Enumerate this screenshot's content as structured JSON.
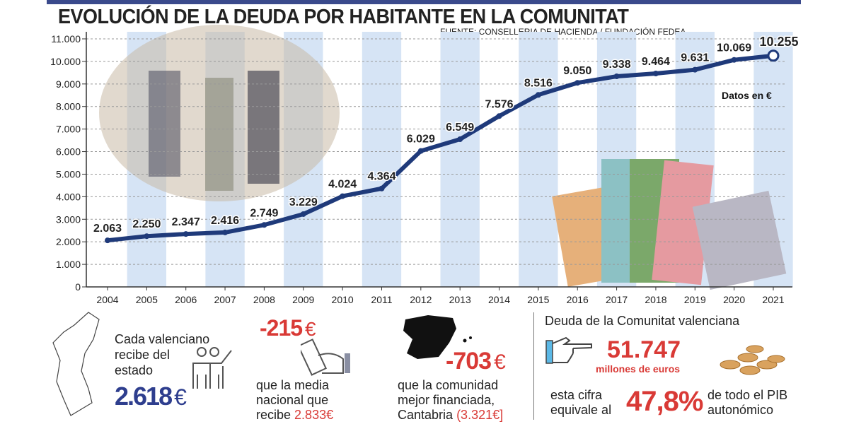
{
  "header": {
    "title": "EVOLUCIÓN DE LA DEUDA POR HABITANTE EN LA COMUNITAT",
    "source": "FUENTE: CONSELLERIA DE HACIENDA / FUNDACIÓN FEDEA"
  },
  "chart_data": {
    "type": "line",
    "title": "EVOLUCIÓN DE LA DEUDA POR HABITANTE EN LA COMUNITAT",
    "unit_note": "Datos en €",
    "x": [
      "2004",
      "2005",
      "2006",
      "2007",
      "2008",
      "2009",
      "2010",
      "2011",
      "2012",
      "2013",
      "2014",
      "2015",
      "2016",
      "2017",
      "2018",
      "2019",
      "2020",
      "2021"
    ],
    "values": [
      2063,
      2250,
      2347,
      2416,
      2749,
      3229,
      4024,
      4364,
      6029,
      6549,
      7576,
      8516,
      9050,
      9338,
      9464,
      9631,
      10069,
      10255
    ],
    "value_labels": [
      "2.063",
      "2.250",
      "2.347",
      "2.416",
      "2.749",
      "3.229",
      "4.024",
      "4.364",
      "6.029",
      "6.549",
      "7.576",
      "8.516",
      "9.050",
      "9.338",
      "9.464",
      "9.631",
      "10.069",
      "10.255"
    ],
    "yticks": [
      0,
      1000,
      2000,
      3000,
      4000,
      5000,
      6000,
      7000,
      8000,
      9000,
      10000,
      11000
    ],
    "ytick_labels": [
      "0",
      "1.000",
      "2.000",
      "3.000",
      "4.000",
      "5.000",
      "6.000",
      "7.000",
      "8.000",
      "9.000",
      "10.000",
      "11.000"
    ],
    "ylim": [
      0,
      11000
    ],
    "grid": "dashed horizontal",
    "line_color": "#1f3a7a",
    "stripe_color": "#d6e4f5"
  },
  "panels": {
    "valenciano": {
      "text1": "Cada valenciano",
      "text2": "recibe del",
      "text3": "estado",
      "value": "2.618",
      "euro": "€"
    },
    "media": {
      "value": "-215",
      "euro": "€",
      "text1": "que la media",
      "text2": "nacional que",
      "text3": "recibe",
      "highlight": "2.833€"
    },
    "cantabria": {
      "value": "-703",
      "euro": "€",
      "text1": "que la comunidad",
      "text2": "mejor financiada,",
      "text3": "Cantabria",
      "highlight": "(3.321€]"
    },
    "deuda": {
      "heading": "Deuda de la Comunitat valenciana",
      "value": "51.747",
      "unit": "millones de euros",
      "text1": "esta cifra",
      "text2": "equivale al",
      "pct": "47,8%",
      "text3": "de todo el PIB",
      "text4": "autonómico"
    }
  },
  "colors": {
    "red": "#d93a36",
    "blue": "#2e3e8e",
    "accent": "#5bb8e6"
  }
}
